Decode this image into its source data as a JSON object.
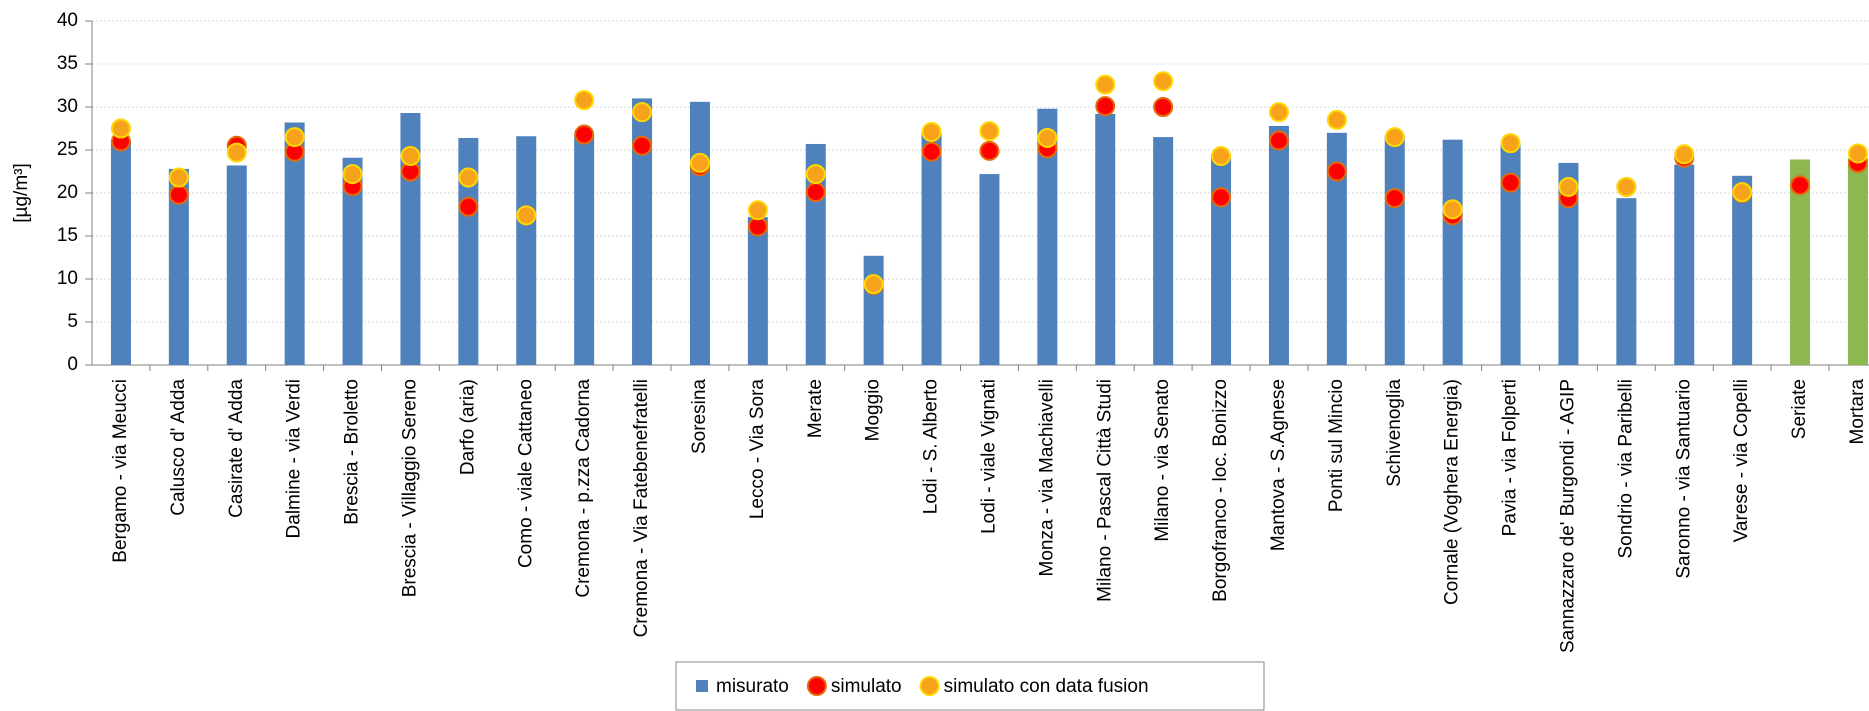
{
  "chart_data": {
    "type": "bar",
    "ylabel": "[µg/m³]",
    "categories": [
      "Bergamo - via Meucci",
      "Calusco d' Adda",
      "Casirate d' Adda",
      "Dalmine - via Verdi",
      "Brescia - Broletto",
      "Brescia - Villaggio Sereno",
      "Darfo (aria)",
      "Como - viale Cattaneo",
      "Cremona - p.zza Cadorna",
      "Cremona - Via Fatebenefratelli",
      "Soresina",
      "Lecco - Via Sora",
      "Merate",
      "Moggio",
      "Lodi - S. Alberto",
      "Lodi - viale Vignati",
      "Monza - via Machiavelli",
      "Milano - Pascal Città Studi",
      "Milano - via Senato",
      "Borgofranco - loc. Bonizzo",
      "Mantova - S.Agnese",
      "Ponti sul Mincio",
      "Schivenoglia",
      "Cornale (Voghera Energia)",
      "Pavia - via Folperti",
      "Sannazzaro de' Burgondi - AGIP",
      "Sondrio - via Paribelli",
      "Saronno - via Santuario",
      "Varese - via Copelli",
      "Seriate",
      "Mortara"
    ],
    "series": [
      {
        "name": "misurato",
        "kind": "bar",
        "color": "#4f81bd",
        "colors": [
          "#4f81bd",
          "#4f81bd",
          "#4f81bd",
          "#4f81bd",
          "#4f81bd",
          "#4f81bd",
          "#4f81bd",
          "#4f81bd",
          "#4f81bd",
          "#4f81bd",
          "#4f81bd",
          "#4f81bd",
          "#4f81bd",
          "#4f81bd",
          "#4f81bd",
          "#4f81bd",
          "#4f81bd",
          "#4f81bd",
          "#4f81bd",
          "#4f81bd",
          "#4f81bd",
          "#4f81bd",
          "#4f81bd",
          "#4f81bd",
          "#4f81bd",
          "#4f81bd",
          "#4f81bd",
          "#4f81bd",
          "#4f81bd",
          "#8db851",
          "#8db851"
        ],
        "values": [
          26,
          22.8,
          23.2,
          28.2,
          24.1,
          29.3,
          26.4,
          26.6,
          26.7,
          31,
          30.6,
          17.2,
          25.7,
          12.7,
          27,
          22.2,
          29.8,
          29.2,
          26.5,
          24.5,
          27.8,
          27,
          26.7,
          26.2,
          25.7,
          23.5,
          19.4,
          23.3,
          22,
          23.9,
          24
        ]
      },
      {
        "name": "simulato",
        "kind": "marker",
        "color": "#ff0000",
        "edgecolor": "#e36c0a",
        "values": [
          26,
          19.8,
          25.5,
          24.8,
          20.8,
          22.5,
          18.4,
          17.4,
          26.8,
          25.5,
          23.1,
          16.1,
          20.1,
          9.3,
          24.8,
          24.9,
          25.2,
          30.1,
          30,
          19.5,
          26.1,
          22.5,
          19.4,
          17.4,
          21.2,
          19.4,
          20.7,
          24.1,
          20,
          20.9,
          23.5
        ]
      },
      {
        "name": "simulato con data fusion",
        "kind": "marker",
        "color": "#f7a21b",
        "edgecolor": "#ffd800",
        "values": [
          27.5,
          21.8,
          24.7,
          26.5,
          22.2,
          24.3,
          21.8,
          17.4,
          30.8,
          29.4,
          23.5,
          18,
          22.2,
          9.4,
          27.1,
          27.2,
          26.4,
          32.6,
          33,
          24.3,
          29.4,
          28.5,
          26.5,
          18.1,
          25.8,
          20.7,
          20.7,
          24.5,
          20.1,
          null,
          24.6
        ]
      }
    ],
    "ylim": [
      0,
      40
    ],
    "yticks": [
      0,
      5,
      10,
      15,
      20,
      25,
      30,
      35,
      40
    ],
    "grid": true
  }
}
